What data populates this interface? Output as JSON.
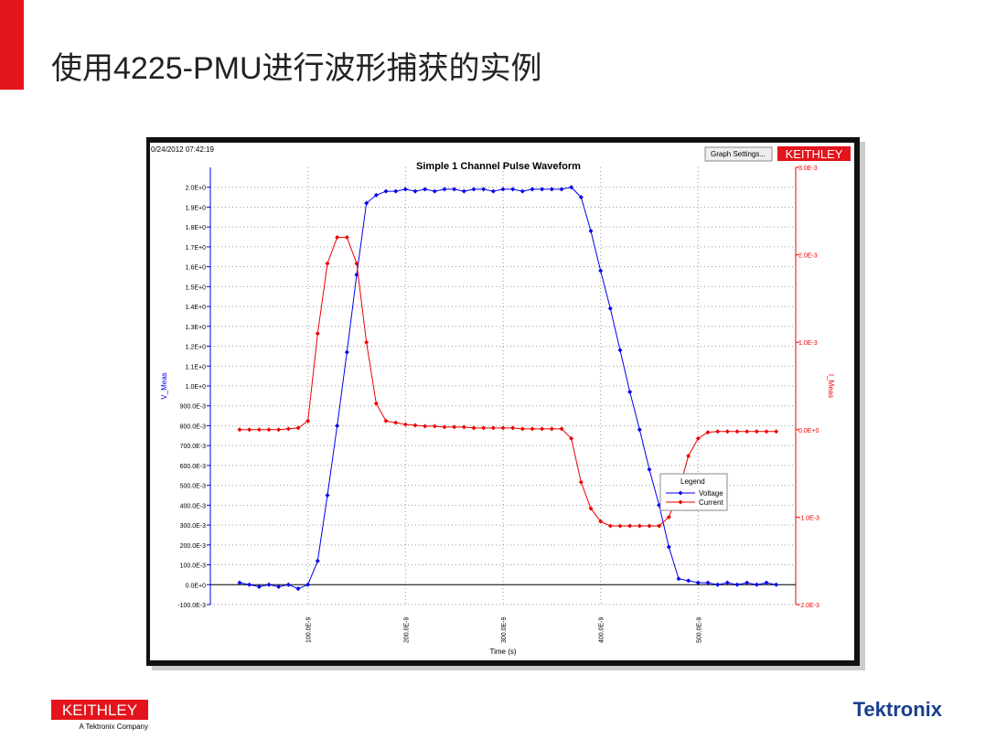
{
  "slide": {
    "title": "使用4225-PMU进行波形捕获的实例",
    "footer_brand": "KEITHLEY",
    "footer_sub": "A Tektronix Company",
    "footer_right": "Tektronix"
  },
  "window": {
    "timestamp": "0/24/2012 07:42:19",
    "button": "Graph Settings...",
    "badge": "KEITHLEY"
  },
  "chart_data": {
    "type": "line",
    "title": "Simple 1 Channel Pulse Waveform",
    "x_label": "Time (s)",
    "y_label": "V_Meas",
    "y2_label": "I_Meas",
    "legend_title": "Legend",
    "grid": true,
    "xlim": [
      0,
      6e-07
    ],
    "ylim": [
      -0.1,
      2.1
    ],
    "y2lim": [
      -0.002,
      0.003
    ],
    "xticks": [
      {
        "value": 1e-07,
        "label": "100.0E-9"
      },
      {
        "value": 2e-07,
        "label": "200.0E-9"
      },
      {
        "value": 3e-07,
        "label": "300.0E-9"
      },
      {
        "value": 4e-07,
        "label": "400.0E-9"
      },
      {
        "value": 5e-07,
        "label": "500.0E-9"
      }
    ],
    "yticks": [
      {
        "value": 2.0,
        "label": "2.0E+0"
      },
      {
        "value": 1.9,
        "label": "1.9E+0"
      },
      {
        "value": 1.8,
        "label": "1.8E+0"
      },
      {
        "value": 1.7,
        "label": "1.7E+0"
      },
      {
        "value": 1.6,
        "label": "1.6E+0"
      },
      {
        "value": 1.5,
        "label": "1.5E+0"
      },
      {
        "value": 1.4,
        "label": "1.4E+0"
      },
      {
        "value": 1.3,
        "label": "1.3E+0"
      },
      {
        "value": 1.2,
        "label": "1.2E+0"
      },
      {
        "value": 1.1,
        "label": "1.1E+0"
      },
      {
        "value": 1.0,
        "label": "1.0E+0"
      },
      {
        "value": 0.9,
        "label": "900.0E-3"
      },
      {
        "value": 0.8,
        "label": "800.0E-3"
      },
      {
        "value": 0.7,
        "label": "700.0E-3"
      },
      {
        "value": 0.6,
        "label": "600.0E-3"
      },
      {
        "value": 0.5,
        "label": "500.0E-3"
      },
      {
        "value": 0.4,
        "label": "400.0E-3"
      },
      {
        "value": 0.3,
        "label": "300.0E-3"
      },
      {
        "value": 0.2,
        "label": "200.0E-3"
      },
      {
        "value": 0.1,
        "label": "100.0E-3"
      },
      {
        "value": 0,
        "label": "0.0E+0"
      },
      {
        "value": -0.1,
        "label": "-100.0E-3"
      }
    ],
    "y2ticks": [
      {
        "value": 0.003,
        "label": "3.0E-3"
      },
      {
        "value": 0.002,
        "label": "2.0E-3"
      },
      {
        "value": 0.001,
        "label": "1.0E-3"
      },
      {
        "value": 0,
        "label": "0.0E+0"
      },
      {
        "value": -0.001,
        "label": "-1.0E-3"
      },
      {
        "value": -0.002,
        "label": "-2.0E-3"
      }
    ],
    "x": [
      3e-08,
      4e-08,
      5e-08,
      6e-08,
      7e-08,
      8e-08,
      9e-08,
      1e-07,
      1.1e-07,
      1.2e-07,
      1.3e-07,
      1.4e-07,
      1.5e-07,
      1.6e-07,
      1.7e-07,
      1.8e-07,
      1.9e-07,
      2e-07,
      2.1e-07,
      2.2e-07,
      2.3e-07,
      2.4e-07,
      2.5e-07,
      2.6e-07,
      2.7e-07,
      2.8e-07,
      2.9e-07,
      3e-07,
      3.1e-07,
      3.2e-07,
      3.3e-07,
      3.4e-07,
      3.5e-07,
      3.6e-07,
      3.7e-07,
      3.8e-07,
      3.9e-07,
      4e-07,
      4.1e-07,
      4.2e-07,
      4.3e-07,
      4.4e-07,
      4.5e-07,
      4.6e-07,
      4.7e-07,
      4.8e-07,
      4.9e-07,
      5e-07,
      5.1e-07,
      5.2e-07,
      5.3e-07,
      5.4e-07,
      5.5e-07,
      5.6e-07,
      5.7e-07,
      5.8e-07
    ],
    "series": [
      {
        "name": "Voltage",
        "color": "#0000ee",
        "values": [
          0.01,
          0.0,
          -0.01,
          0.0,
          -0.01,
          0.0,
          -0.02,
          0.0,
          0.12,
          0.45,
          0.8,
          1.17,
          1.56,
          1.92,
          1.96,
          1.98,
          1.98,
          1.99,
          1.98,
          1.99,
          1.98,
          1.99,
          1.99,
          1.98,
          1.99,
          1.99,
          1.98,
          1.99,
          1.99,
          1.98,
          1.99,
          1.99,
          1.99,
          1.99,
          2.0,
          1.95,
          1.78,
          1.58,
          1.39,
          1.18,
          0.97,
          0.78,
          0.58,
          0.4,
          0.19,
          0.03,
          0.02,
          0.01,
          0.01,
          0.0,
          0.01,
          0.0,
          0.01,
          0.0,
          0.01,
          0.0
        ]
      },
      {
        "name": "Current",
        "color": "#ee0000",
        "axis": "y2",
        "values": [
          0.0,
          0.0,
          0.0,
          0.0,
          0.0,
          1e-05,
          2e-05,
          0.0001,
          0.0011,
          0.0019,
          0.0022,
          0.0022,
          0.0019,
          0.001,
          0.0003,
          0.0001,
          8e-05,
          6e-05,
          5e-05,
          4e-05,
          4e-05,
          3e-05,
          3e-05,
          3e-05,
          2e-05,
          2e-05,
          2e-05,
          2e-05,
          2e-05,
          1e-05,
          1e-05,
          1e-05,
          1e-05,
          1e-05,
          -0.0001,
          -0.0006,
          -0.0009,
          -0.00105,
          -0.0011,
          -0.0011,
          -0.0011,
          -0.0011,
          -0.0011,
          -0.0011,
          -0.001,
          -0.0007,
          -0.0003,
          -0.0001,
          -3e-05,
          -2e-05,
          -2e-05,
          -2e-05,
          -2e-05,
          -2e-05,
          -2e-05,
          -2e-05
        ]
      }
    ]
  }
}
